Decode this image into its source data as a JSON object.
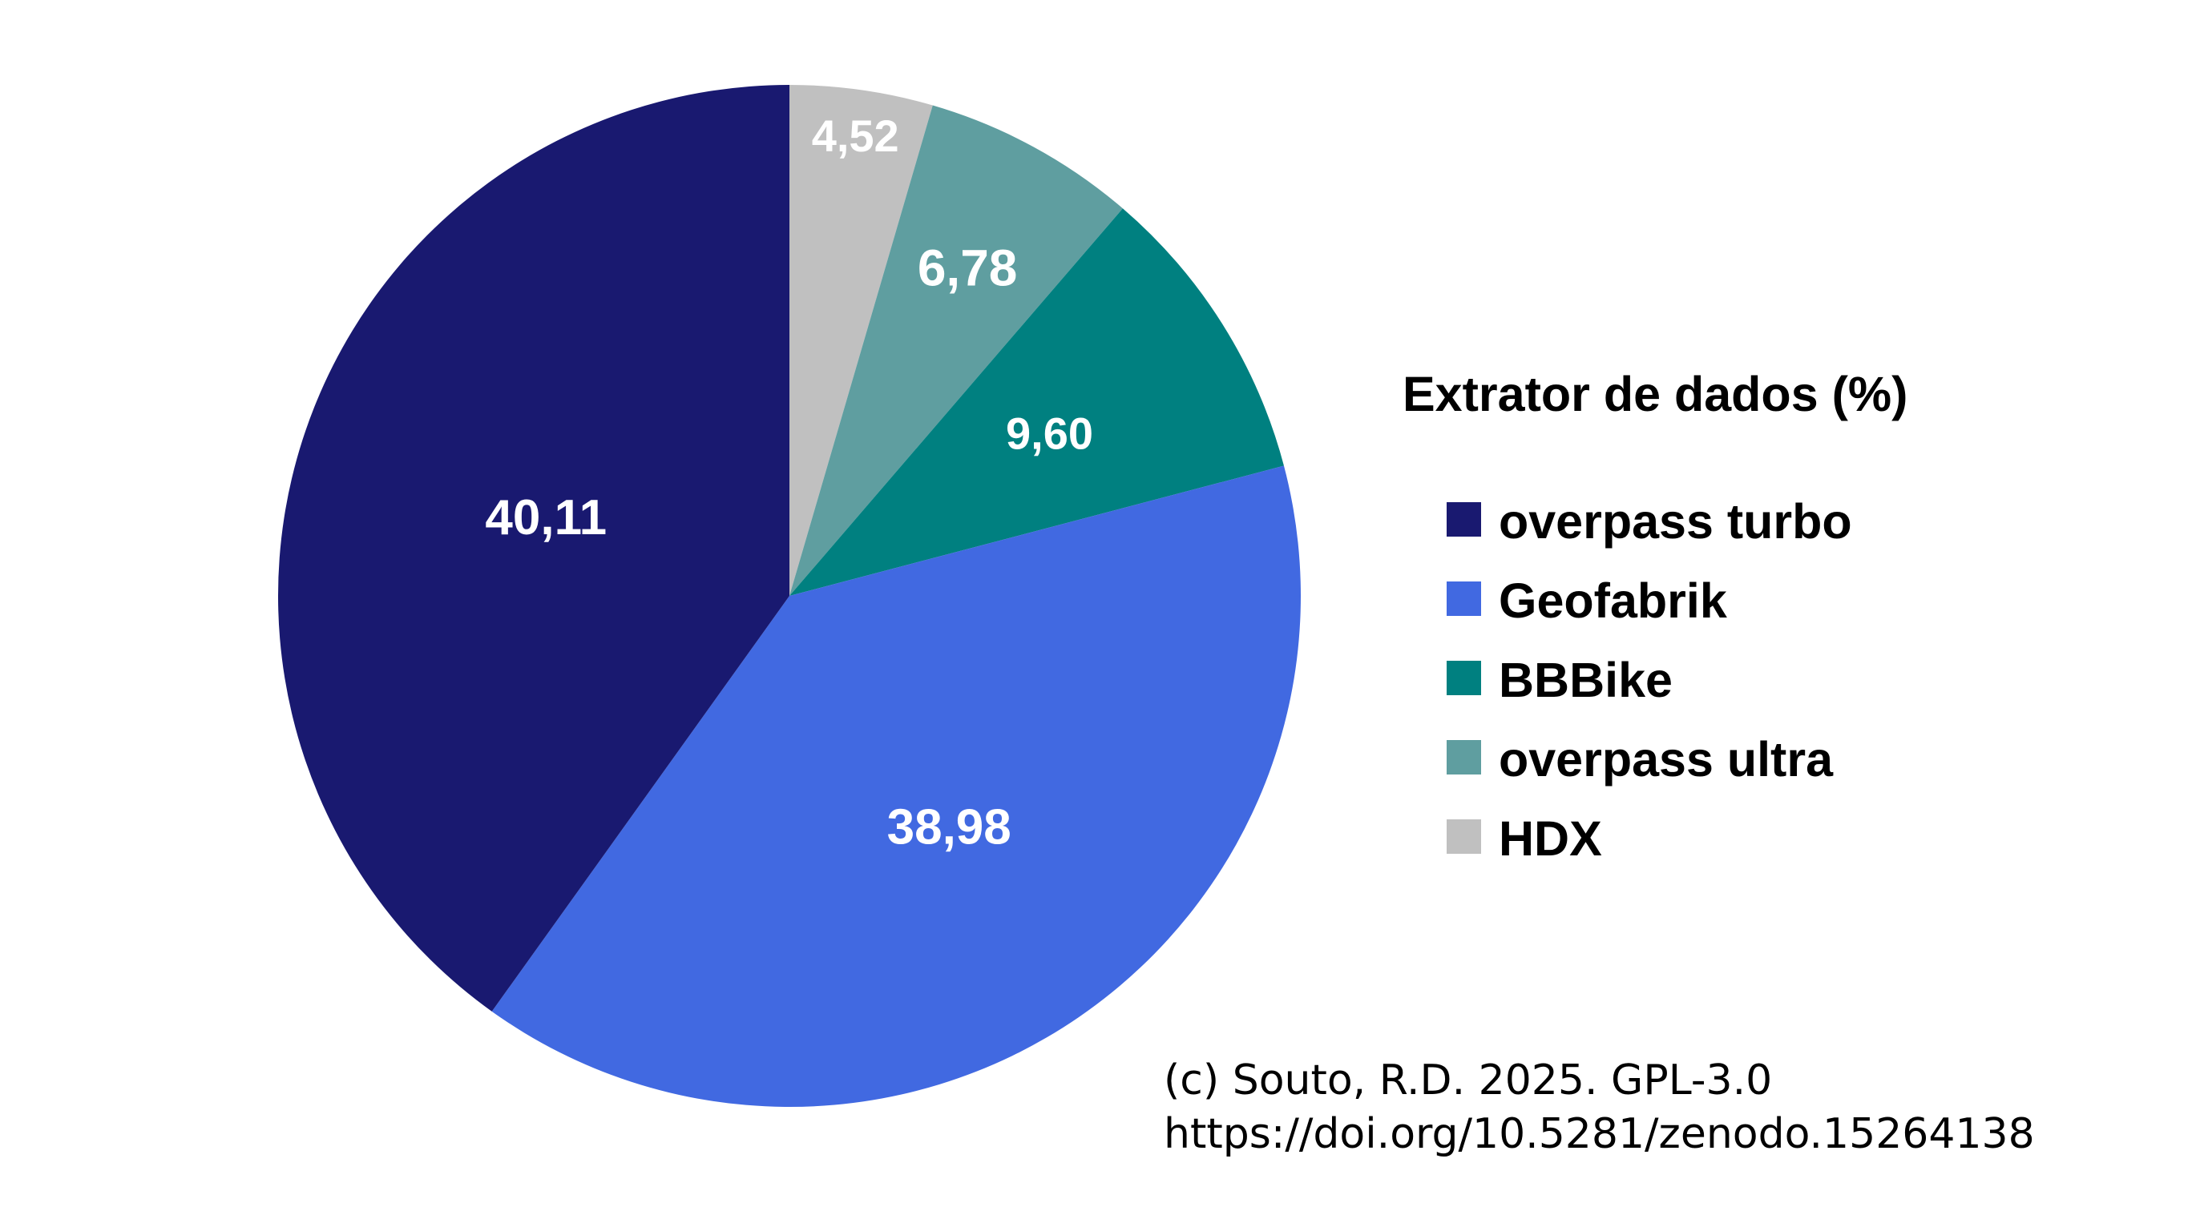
{
  "chart_data": {
    "type": "pie",
    "title": "",
    "legend_title": "Extrator de dados (%)",
    "legend_placement": "right",
    "start_angle": "12 o'clock",
    "direction": "clockwise",
    "slices": [
      {
        "label": "HDX",
        "value": 4.52,
        "value_text": "4,52",
        "color": "#c0c0c0"
      },
      {
        "label": "overpass ultra",
        "value": 6.78,
        "value_text": "6,78",
        "color": "#5f9ea0"
      },
      {
        "label": "BBBike",
        "value": 9.6,
        "value_text": "9,60",
        "color": "#008080"
      },
      {
        "label": "Geofabrik",
        "value": 38.98,
        "value_text": "38,98",
        "color": "#4169e1"
      },
      {
        "label": "overpass turbo",
        "value": 40.11,
        "value_text": "40,11",
        "color": "#191970"
      }
    ],
    "legend_order": [
      "overpass turbo",
      "Geofabrik",
      "BBBike",
      "overpass ultra",
      "HDX"
    ]
  },
  "credit": {
    "line1": "(c) Souto, R.D. 2025. GPL-3.0",
    "line2": "https://doi.org/10.5281/zenodo.15264138"
  }
}
